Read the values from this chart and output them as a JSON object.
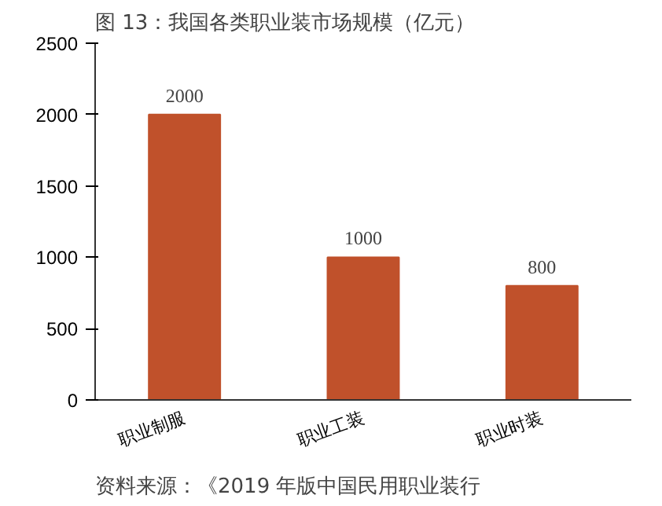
{
  "chart_data": {
    "type": "bar",
    "title": "图 13：我国各类职业装市场规模（亿元）",
    "categories": [
      "职业制服",
      "职业工装",
      "职业时装"
    ],
    "values": [
      2000,
      1000,
      800
    ],
    "color": "#c0512b",
    "ylim": [
      0,
      2500
    ],
    "yticks": [
      0,
      500,
      1000,
      1500,
      2000,
      2500
    ],
    "grid": false,
    "data_labels": true,
    "annotations": [
      "资料来源：《2019 年版中国民用职业装行"
    ]
  }
}
